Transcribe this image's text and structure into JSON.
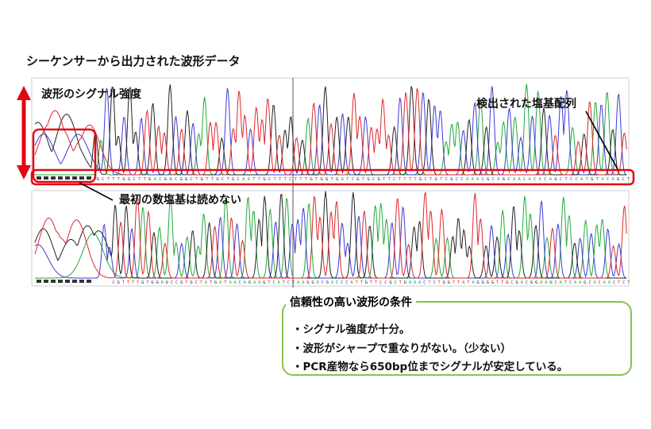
{
  "title": "シーケンサーから出力された波形データ",
  "labels": {
    "signal_strength": "波形のシグナル強度",
    "detected_sequence": "検出された塩基配列",
    "first_bases": "最初の数塩基は読めない"
  },
  "conditions": {
    "title": "信頼性の高い波形の条件",
    "items": [
      "・シグナル強度が十分。",
      "・波形がシャープで重なりがない。（少ない）",
      "・PCR産物なら650bp位までシグナルが安定している。"
    ]
  },
  "sequences": {
    "top": "GCTTTGGCTTGACGGCGGCTGTTGCTGCAATTGCTTTCTTTGTGGTGATCGTGCGTTCTTTTGCTGTCGCCAAACGCAGCAACACACAGCTCCATGTACAGCT",
    "bottom": "CGTTTTGTGGAGCCGTGCTATGATAACAGAAGTCATCTAAGGACGACCCATTGTTCCGCTGAAACTCTGGTTATAGGGGTTGCGACGGAAGCATCAAGCACAACTCT"
  },
  "colors": {
    "A": "#22aa3a",
    "C": "#3b3bd6",
    "G": "#222222",
    "T": "#e0262a",
    "highlight": "#e30613",
    "condition_border": "#8cc152"
  }
}
